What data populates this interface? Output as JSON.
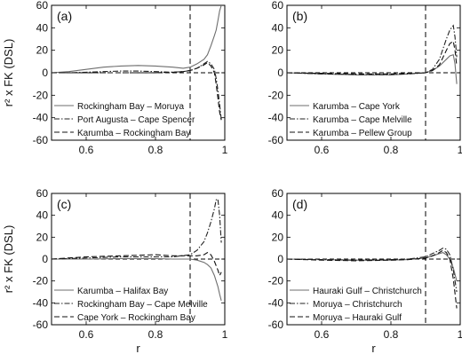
{
  "chart_data": [
    {
      "type": "line",
      "panel_label": "(a)",
      "ylabel": "r² x FK (DSL)",
      "xlabel": "",
      "xlim": [
        0.5,
        1.0
      ],
      "ylim": [
        -60,
        60
      ],
      "xticks": [
        "0.6",
        "0.8",
        "1"
      ],
      "yticks": [
        "60",
        "40",
        "20",
        "0",
        "-20",
        "-40",
        "-60"
      ],
      "reference_lines": {
        "vertical_dashed_at_x": 0.9,
        "horizontal_dashed_at_y": 0
      },
      "legend_position": "bottom-left",
      "series": [
        {
          "name": "Rockingham Bay – Moruya",
          "style": "solid",
          "color": "#6e6e6e",
          "x": [
            0.5,
            0.55,
            0.6,
            0.65,
            0.7,
            0.75,
            0.8,
            0.85,
            0.88,
            0.9,
            0.92,
            0.94,
            0.95,
            0.96,
            0.97,
            0.975,
            0.98,
            0.985,
            0.99
          ],
          "y": [
            0,
            1,
            3,
            5,
            6,
            6.5,
            6,
            5,
            4,
            5,
            8,
            12,
            16,
            24,
            33,
            38,
            46,
            55,
            60
          ]
        },
        {
          "name": "Port Augusta – Cape Spencer",
          "style": "dash-dot",
          "color": "#222222",
          "x": [
            0.5,
            0.55,
            0.6,
            0.65,
            0.7,
            0.75,
            0.8,
            0.85,
            0.88,
            0.9,
            0.92,
            0.94,
            0.95,
            0.96,
            0.97,
            0.975,
            0.98,
            0.985,
            0.99
          ],
          "y": [
            0,
            0,
            0.5,
            1,
            1.5,
            1.5,
            1,
            0.5,
            1,
            2,
            4,
            8,
            10,
            8,
            3,
            -5,
            -15,
            -28,
            -42
          ]
        },
        {
          "name": "Karumba – Rockingham Bay",
          "style": "dashed",
          "color": "#111111",
          "x": [
            0.5,
            0.55,
            0.6,
            0.65,
            0.7,
            0.75,
            0.8,
            0.85,
            0.88,
            0.9,
            0.92,
            0.94,
            0.95,
            0.96,
            0.97,
            0.975,
            0.98,
            0.985,
            0.99
          ],
          "y": [
            0,
            0,
            0,
            0,
            0,
            0,
            0,
            0.5,
            1,
            2,
            4,
            7,
            9,
            6,
            0,
            -10,
            -22,
            -35,
            -42
          ]
        }
      ]
    },
    {
      "type": "line",
      "panel_label": "(b)",
      "ylabel": "",
      "xlabel": "",
      "xlim": [
        0.5,
        1.0
      ],
      "ylim": [
        -60,
        60
      ],
      "xticks": [
        "0.6",
        "0.8",
        "1"
      ],
      "yticks": [
        "60",
        "40",
        "20",
        "0",
        "-20",
        "-40",
        "-60"
      ],
      "reference_lines": {
        "vertical_dashed_at_x": 0.9,
        "horizontal_dashed_at_y": 0
      },
      "legend_position": "bottom-left",
      "series": [
        {
          "name": "Karumba – Cape York",
          "style": "solid",
          "color": "#6e6e6e",
          "x": [
            0.5,
            0.6,
            0.7,
            0.8,
            0.85,
            0.9,
            0.92,
            0.94,
            0.96,
            0.97,
            0.98,
            0.985,
            0.99
          ],
          "y": [
            0,
            -1,
            -2,
            -2,
            -1,
            0,
            2,
            6,
            12,
            15,
            16,
            8,
            -10
          ]
        },
        {
          "name": "Karumba – Cape Melville",
          "style": "dash-dot",
          "color": "#222222",
          "x": [
            0.5,
            0.6,
            0.7,
            0.8,
            0.85,
            0.9,
            0.92,
            0.94,
            0.96,
            0.97,
            0.98,
            0.985,
            0.99
          ],
          "y": [
            0,
            -1,
            -1.5,
            -1.5,
            -1,
            0,
            3,
            12,
            30,
            38,
            42,
            32,
            14
          ]
        },
        {
          "name": "Karumba – Pellew Group",
          "style": "dashed",
          "color": "#111111",
          "x": [
            0.5,
            0.6,
            0.7,
            0.8,
            0.85,
            0.9,
            0.92,
            0.94,
            0.96,
            0.97,
            0.98,
            0.985,
            0.99
          ],
          "y": [
            0,
            -0.5,
            -1,
            -1,
            -0.5,
            0,
            2,
            7,
            20,
            26,
            28,
            20,
            6
          ]
        }
      ]
    },
    {
      "type": "line",
      "panel_label": "(c)",
      "ylabel": "r² x FK (DSL)",
      "xlabel": "r",
      "xlim": [
        0.5,
        1.0
      ],
      "ylim": [
        -60,
        60
      ],
      "xticks": [
        "0.6",
        "0.8",
        "1"
      ],
      "yticks": [
        "60",
        "40",
        "20",
        "0",
        "-20",
        "-40",
        "-60"
      ],
      "reference_lines": {
        "vertical_dashed_at_x": 0.9,
        "horizontal_dashed_at_y": 0
      },
      "legend_position": "bottom-left",
      "series": [
        {
          "name": "Karumba – Halifax Bay",
          "style": "solid",
          "color": "#6e6e6e",
          "x": [
            0.5,
            0.6,
            0.7,
            0.8,
            0.85,
            0.9,
            0.92,
            0.94,
            0.95,
            0.96,
            0.97,
            0.98,
            0.985,
            0.99
          ],
          "y": [
            0,
            0,
            0.5,
            0.5,
            0,
            0,
            -1,
            -3,
            -5,
            -8,
            -15,
            -25,
            -32,
            -38
          ]
        },
        {
          "name": "Rockingham Bay – Cape Melville",
          "style": "dash-dot",
          "color": "#222222",
          "x": [
            0.5,
            0.6,
            0.7,
            0.8,
            0.85,
            0.9,
            0.92,
            0.94,
            0.95,
            0.96,
            0.97,
            0.975,
            0.98,
            0.985,
            0.99
          ],
          "y": [
            0,
            1,
            2,
            2,
            2,
            4,
            8,
            16,
            24,
            34,
            46,
            54,
            55,
            40,
            15
          ]
        },
        {
          "name": "Cape York – Rockingham Bay",
          "style": "dashed",
          "color": "#111111",
          "x": [
            0.5,
            0.6,
            0.7,
            0.8,
            0.85,
            0.9,
            0.92,
            0.94,
            0.95,
            0.96,
            0.97,
            0.98,
            0.985,
            0.99
          ],
          "y": [
            0,
            2,
            3,
            4,
            3,
            3,
            3,
            4,
            6,
            4,
            -2,
            -10,
            -15,
            -12
          ]
        }
      ]
    },
    {
      "type": "line",
      "panel_label": "(d)",
      "ylabel": "",
      "xlabel": "r",
      "xlim": [
        0.5,
        1.0
      ],
      "ylim": [
        -60,
        60
      ],
      "xticks": [
        "0.6",
        "0.8",
        "1"
      ],
      "yticks": [
        "60",
        "40",
        "20",
        "0",
        "-20",
        "-40",
        "-60"
      ],
      "reference_lines": {
        "vertical_dashed_at_x": 0.9,
        "horizontal_dashed_at_y": 0
      },
      "legend_position": "bottom-left",
      "series": [
        {
          "name": "Hauraki Gulf – Christchurch",
          "style": "solid",
          "color": "#6e6e6e",
          "x": [
            0.5,
            0.6,
            0.7,
            0.8,
            0.85,
            0.9,
            0.92,
            0.94,
            0.95,
            0.96,
            0.97,
            0.98,
            0.99
          ],
          "y": [
            0,
            -0.5,
            -1,
            -1,
            -0.5,
            1,
            3,
            5,
            6,
            4,
            0,
            -8,
            -20
          ]
        },
        {
          "name": "Moruya – Christchurch",
          "style": "dash-dot",
          "color": "#222222",
          "x": [
            0.5,
            0.6,
            0.7,
            0.8,
            0.85,
            0.9,
            0.92,
            0.94,
            0.95,
            0.96,
            0.97,
            0.98,
            0.99
          ],
          "y": [
            0,
            -0.5,
            -1,
            -0.5,
            0,
            2,
            5,
            8,
            10,
            9,
            4,
            -10,
            -30
          ]
        },
        {
          "name": "Moruya – Hauraki Gulf",
          "style": "dashed",
          "color": "#111111",
          "x": [
            0.5,
            0.6,
            0.7,
            0.8,
            0.85,
            0.9,
            0.92,
            0.94,
            0.95,
            0.96,
            0.97,
            0.98,
            0.99
          ],
          "y": [
            0,
            -1,
            -1.5,
            -1,
            -0.5,
            1,
            3,
            6,
            8,
            6,
            0,
            -18,
            -45
          ]
        }
      ]
    }
  ]
}
